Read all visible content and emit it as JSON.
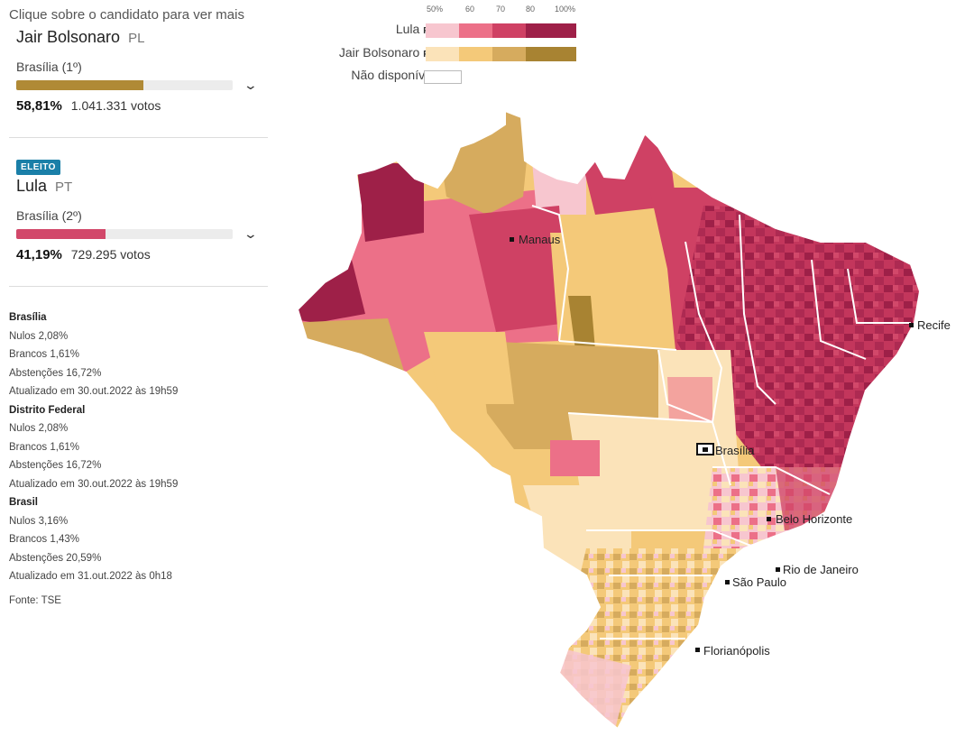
{
  "hint": "Clique sobre o candidato para ver mais",
  "candidates": [
    {
      "name": "Jair Bolsonaro",
      "party": "PL",
      "badge": "",
      "place": "Brasília",
      "rank": "(1º)",
      "percent_text": "58,81%",
      "votes": "1.041.331 votos",
      "share": 0.5881,
      "color": "#b08a36"
    },
    {
      "name": "Lula",
      "party": "PT",
      "badge": "ELEITO",
      "place": "Brasília",
      "rank": "(2º)",
      "percent_text": "41,19%",
      "votes": "729.295 votos",
      "share": 0.4119,
      "color": "#d2486a"
    }
  ],
  "info": [
    {
      "title": "Brasília",
      "lines": [
        "Nulos 2,08%",
        "Brancos 1,61%",
        "Abstenções 16,72%",
        "Atualizado em 30.out.2022 às 19h59"
      ]
    },
    {
      "title": "Distrito Federal",
      "lines": [
        "Nulos 2,08%",
        "Brancos 1,61%",
        "Abstenções 16,72%",
        "Atualizado em 30.out.2022 às 19h59"
      ]
    },
    {
      "title": "Brasil",
      "lines": [
        "Nulos 3,16%",
        "Brancos 1,43%",
        "Abstenções 20,59%",
        "Atualizado em 31.out.2022 às 0h18"
      ]
    }
  ],
  "source": "Fonte: TSE",
  "legend": {
    "ticks": [
      "50%",
      "60",
      "70",
      "80",
      "100%"
    ],
    "lula": {
      "name": "Lula",
      "party": "PT",
      "colors": [
        "#f7c6cf",
        "#ec7088",
        "#cf4164",
        "#9e2048"
      ]
    },
    "bolsonaro": {
      "name": "Jair Bolsonaro",
      "party": "PL",
      "colors": [
        "#fbe3b9",
        "#f4c979",
        "#d6ab5e",
        "#a88332"
      ]
    },
    "unavailable": "Não disponível"
  },
  "cities": [
    {
      "name": "Manaus"
    },
    {
      "name": "Recife"
    },
    {
      "name": "Brasília",
      "capital": true
    },
    {
      "name": "Belo Horizonte"
    },
    {
      "name": "Rio de Janeiro"
    },
    {
      "name": "São Paulo"
    },
    {
      "name": "Florianópolis"
    }
  ]
}
